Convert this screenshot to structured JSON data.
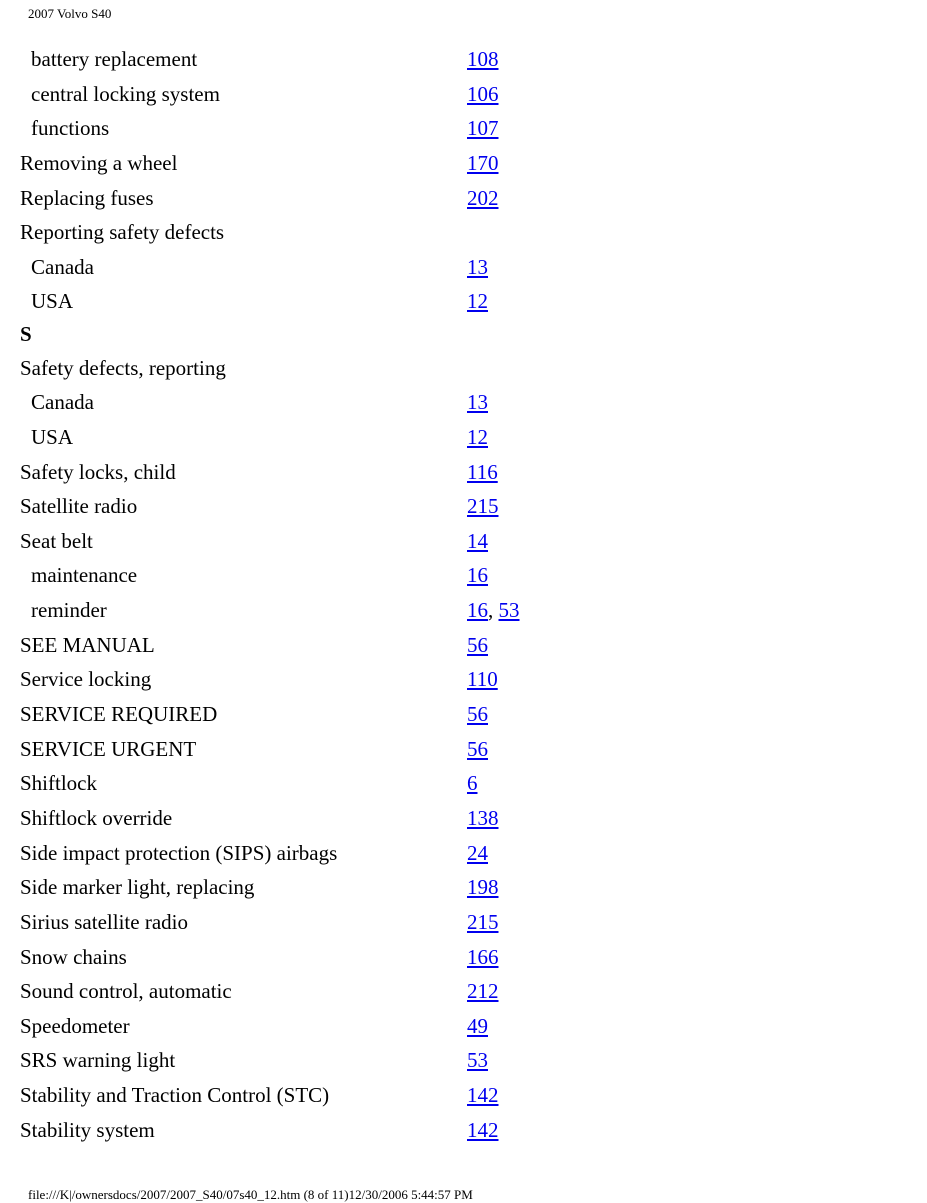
{
  "header": "2007 Volvo S40",
  "footer": "file:///K|/ownersdocs/2007/2007_S40/07s40_12.htm (8 of 11)12/30/2006 5:44:57 PM",
  "rows": [
    {
      "label": "battery replacement",
      "indent": true,
      "pages": [
        "108"
      ]
    },
    {
      "label": "central locking system",
      "indent": true,
      "pages": [
        "106"
      ]
    },
    {
      "label": "functions",
      "indent": true,
      "pages": [
        "107"
      ]
    },
    {
      "label": "Removing a wheel",
      "indent": false,
      "pages": [
        "170"
      ]
    },
    {
      "label": "Replacing fuses",
      "indent": false,
      "pages": [
        "202"
      ]
    },
    {
      "label": "Reporting safety defects",
      "indent": false,
      "pages": []
    },
    {
      "label": "Canada",
      "indent": true,
      "pages": [
        "13"
      ]
    },
    {
      "label": "USA",
      "indent": true,
      "pages": [
        "12"
      ]
    },
    {
      "label": "S",
      "indent": false,
      "section": true
    },
    {
      "label": "Safety defects, reporting",
      "indent": false,
      "pages": []
    },
    {
      "label": "Canada",
      "indent": true,
      "pages": [
        "13"
      ]
    },
    {
      "label": "USA",
      "indent": true,
      "pages": [
        "12"
      ]
    },
    {
      "label": "Safety locks, child",
      "indent": false,
      "pages": [
        "116"
      ]
    },
    {
      "label": "Satellite radio",
      "indent": false,
      "pages": [
        "215"
      ]
    },
    {
      "label": "Seat belt",
      "indent": false,
      "pages": [
        "14"
      ]
    },
    {
      "label": "maintenance",
      "indent": true,
      "pages": [
        "16"
      ]
    },
    {
      "label": "reminder",
      "indent": true,
      "pages": [
        "16",
        "53"
      ]
    },
    {
      "label": "SEE MANUAL",
      "indent": false,
      "pages": [
        "56"
      ]
    },
    {
      "label": "Service locking",
      "indent": false,
      "pages": [
        "110"
      ]
    },
    {
      "label": "SERVICE REQUIRED",
      "indent": false,
      "pages": [
        "56"
      ]
    },
    {
      "label": "SERVICE URGENT",
      "indent": false,
      "pages": [
        "56"
      ]
    },
    {
      "label": "Shiftlock",
      "indent": false,
      "pages": [
        "6"
      ]
    },
    {
      "label": "Shiftlock override",
      "indent": false,
      "pages": [
        "138"
      ]
    },
    {
      "label": "Side impact protection (SIPS) airbags",
      "indent": false,
      "pages": [
        "24"
      ]
    },
    {
      "label": "Side marker light, replacing",
      "indent": false,
      "pages": [
        "198"
      ]
    },
    {
      "label": "Sirius satellite radio",
      "indent": false,
      "pages": [
        "215"
      ]
    },
    {
      "label": "Snow chains",
      "indent": false,
      "pages": [
        "166"
      ]
    },
    {
      "label": "Sound control, automatic",
      "indent": false,
      "pages": [
        "212"
      ]
    },
    {
      "label": "Speedometer",
      "indent": false,
      "pages": [
        "49"
      ]
    },
    {
      "label": "SRS warning light",
      "indent": false,
      "pages": [
        "53"
      ]
    },
    {
      "label": "Stability and Traction Control (STC)",
      "indent": false,
      "pages": [
        "142"
      ]
    },
    {
      "label": "Stability system",
      "indent": false,
      "pages": [
        "142"
      ]
    }
  ]
}
